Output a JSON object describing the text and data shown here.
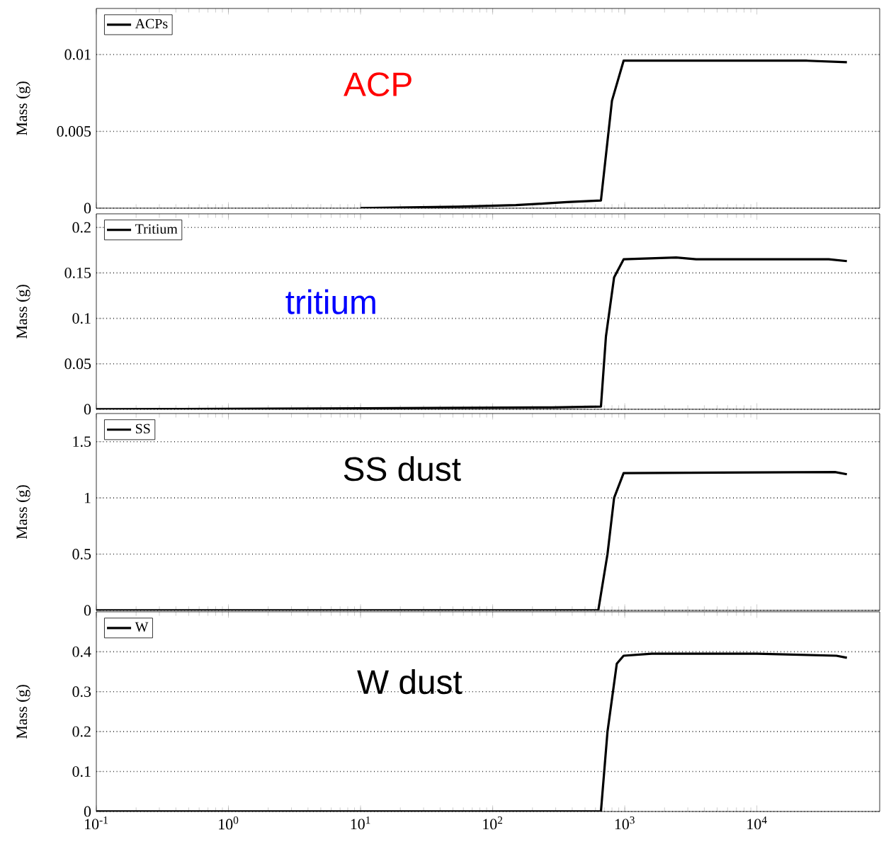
{
  "chart_data": [
    {
      "type": "line",
      "ylabel": "Mass (g)",
      "log": "x",
      "grid": "y",
      "legend": "top left",
      "tick_labels": "y",
      "annotations": [
        "ACP"
      ],
      "xlim": [
        0.1,
        85000
      ],
      "xticks": [
        {
          "value": 0.1,
          "label": null
        },
        {
          "value": 1,
          "label": null
        },
        {
          "value": 10,
          "label": null
        },
        {
          "value": 100,
          "label": null
        },
        {
          "value": 1000,
          "label": null
        },
        {
          "value": 10000,
          "label": null
        }
      ],
      "ylim": [
        0,
        0.013
      ],
      "yticks": [
        0,
        0.005,
        0.01
      ],
      "series": [
        {
          "name": "ACPs",
          "color": "#000000",
          "x": [
            10,
            55,
            150,
            245,
            365,
            660,
            800,
            980,
            24000,
            48000
          ],
          "values": [
            0,
            0.0001,
            0.0002,
            0.0003,
            0.0004,
            0.0005,
            0.007,
            0.0096,
            0.0096,
            0.0095
          ]
        }
      ]
    },
    {
      "type": "line",
      "ylabel": "Mass (g)",
      "log": "x",
      "grid": "y",
      "legend": "top left",
      "tick_labels": "y",
      "annotations": [
        "tritium"
      ],
      "xlim": [
        0.1,
        85000
      ],
      "xticks": [
        {
          "value": 0.1,
          "label": null
        },
        {
          "value": 1,
          "label": null
        },
        {
          "value": 10,
          "label": null
        },
        {
          "value": 100,
          "label": null
        },
        {
          "value": 1000,
          "label": null
        },
        {
          "value": 10000,
          "label": null
        }
      ],
      "ylim": [
        0,
        0.215
      ],
      "yticks": [
        0,
        0.05,
        0.1,
        0.15,
        0.2
      ],
      "series": [
        {
          "name": "Tritium",
          "color": "#000000",
          "x": [
            0.1,
            280,
            660,
            720,
            830,
            980,
            2450,
            3470,
            35000,
            48000
          ],
          "values": [
            0,
            0.002,
            0.003,
            0.08,
            0.145,
            0.165,
            0.167,
            0.165,
            0.165,
            0.163
          ]
        }
      ]
    },
    {
      "type": "line",
      "ylabel": "Mass (g)",
      "log": "x",
      "grid": "y",
      "legend": "top left",
      "tick_labels": "y",
      "annotations": [
        "SS dust"
      ],
      "xlim": [
        0.1,
        85000
      ],
      "xticks": [
        {
          "value": 0.1,
          "label": null
        },
        {
          "value": 1,
          "label": null
        },
        {
          "value": 10,
          "label": null
        },
        {
          "value": 100,
          "label": null
        },
        {
          "value": 1000,
          "label": null
        },
        {
          "value": 10000,
          "label": null
        }
      ],
      "ylim": [
        0,
        1.75
      ],
      "yticks": [
        0,
        0.5,
        1,
        1.5
      ],
      "series": [
        {
          "name": "SS",
          "color": "#000000",
          "x": [
            0.1,
            630,
            740,
            830,
            980,
            39000,
            48000
          ],
          "values": [
            0,
            0,
            0.5,
            1.0,
            1.22,
            1.23,
            1.21
          ]
        }
      ]
    },
    {
      "type": "line",
      "ylabel": "Mass (g)",
      "log": "x",
      "grid": "y",
      "legend": "top left",
      "annotations": [
        "W dust"
      ],
      "xlim": [
        0.1,
        85000
      ],
      "xticks": [
        {
          "value": 0.1,
          "label": "10$^{-1}$"
        },
        {
          "value": 1,
          "label": "10$^{0}$"
        },
        {
          "value": 10,
          "label": "10$^{1}$"
        },
        {
          "value": 100,
          "label": "10$^{2}$"
        },
        {
          "value": 1000,
          "label": "10$^{3}$"
        },
        {
          "value": 10000,
          "label": "10$^{4}$"
        }
      ],
      "ylim": [
        0,
        0.5
      ],
      "yticks": [
        0,
        0.1,
        0.2,
        0.3,
        0.4
      ],
      "series": [
        {
          "name": "W",
          "color": "#000000",
          "x": [
            0.1,
            660,
            740,
            870,
            980,
            1600,
            10000,
            40000,
            48000
          ],
          "values": [
            0,
            0,
            0.2,
            0.37,
            0.39,
            0.395,
            0.395,
            0.39,
            0.385
          ]
        }
      ]
    }
  ]
}
